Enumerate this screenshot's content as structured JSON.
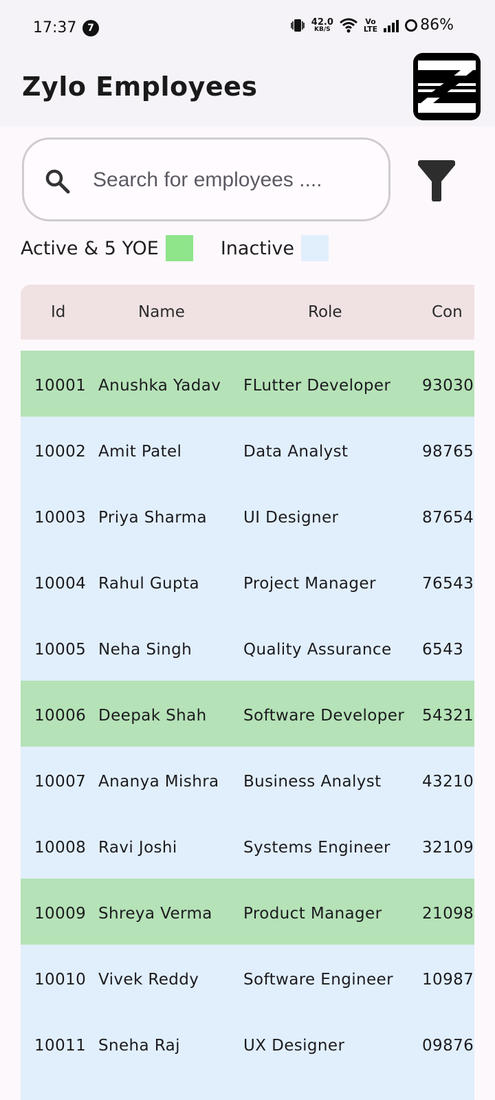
{
  "status_bar": {
    "time": "17:37",
    "notification_count": "7",
    "net_speed": "42.0",
    "net_speed_unit": "KB/S",
    "network_type_line1": "Vo",
    "network_type_line2": "LTE",
    "battery": "86%"
  },
  "app_bar": {
    "title": "Zylo Employees",
    "logo_icon": "zylo-logo"
  },
  "search": {
    "placeholder": "Search for employees ....",
    "value": ""
  },
  "filter": {
    "icon": "filter-icon"
  },
  "legend": {
    "active_label": "Active & 5 YOE",
    "active_color": "#8ee58a",
    "inactive_label": "Inactive",
    "inactive_color": "#e1effc"
  },
  "table": {
    "headers": {
      "id": "Id",
      "name": "Name",
      "role": "Role",
      "contact": "Con"
    },
    "header_color": "#f0e2e3",
    "active_row_color": "#b5e2b7",
    "inactive_row_color": "#e1effc",
    "rows": [
      {
        "id": "10001",
        "name": "Anushka Yadav",
        "role": "FLutter Developer",
        "contact": "93030",
        "active": true
      },
      {
        "id": "10002",
        "name": "Amit Patel",
        "role": "Data Analyst",
        "contact": "98765",
        "active": false
      },
      {
        "id": "10003",
        "name": "Priya Sharma",
        "role": "UI Designer",
        "contact": "87654",
        "active": false
      },
      {
        "id": "10004",
        "name": "Rahul Gupta",
        "role": "Project Manager",
        "contact": "76543",
        "active": false
      },
      {
        "id": "10005",
        "name": "Neha Singh",
        "role": "Quality Assurance",
        "contact": "6543",
        "active": false
      },
      {
        "id": "10006",
        "name": "Deepak Shah",
        "role": "Software Developer",
        "contact": "54321",
        "active": true
      },
      {
        "id": "10007",
        "name": "Ananya Mishra",
        "role": "Business Analyst",
        "contact": "43210",
        "active": false
      },
      {
        "id": "10008",
        "name": "Ravi Joshi",
        "role": "Systems Engineer",
        "contact": "32109",
        "active": false
      },
      {
        "id": "10009",
        "name": "Shreya Verma",
        "role": "Product Manager",
        "contact": "21098",
        "active": true
      },
      {
        "id": "10010",
        "name": "Vivek Reddy",
        "role": "Software Engineer",
        "contact": "10987",
        "active": false
      },
      {
        "id": "10011",
        "name": "Sneha Raj",
        "role": "UX Designer",
        "contact": "09876",
        "active": false
      },
      {
        "id": "",
        "name": "",
        "role": "",
        "contact": "",
        "active": false
      }
    ]
  }
}
